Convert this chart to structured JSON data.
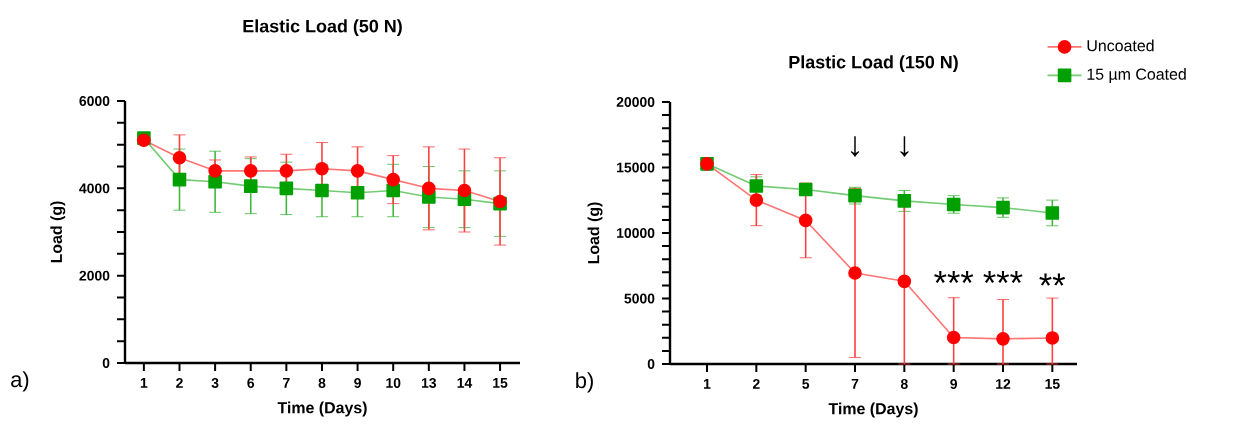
{
  "chart_data": [
    {
      "type": "line",
      "title": "Elastic Load (50 N)",
      "xlabel": "Time (Days)",
      "ylabel": "Load (g)",
      "categories": [
        "1",
        "2",
        "3",
        "6",
        "7",
        "8",
        "9",
        "10",
        "13",
        "14",
        "15"
      ],
      "ylim": [
        0,
        6000
      ],
      "yticks": [
        0,
        {
          "value": 500,
          "label": null
        },
        {
          "value": 1000,
          "label": null
        },
        {
          "value": 1500,
          "label": null
        },
        2000,
        {
          "value": 2500,
          "label": null
        },
        {
          "value": 3000,
          "label": null
        },
        {
          "value": 3500,
          "label": null
        },
        4000,
        {
          "value": 4500,
          "label": null
        },
        {
          "value": 5000,
          "label": null
        },
        {
          "value": 5500,
          "label": null
        },
        6000
      ],
      "series": [
        {
          "color": "#ff0000",
          "marker": "circle",
          "values": [
            5100,
            4700,
            4400,
            4400,
            4400,
            4450,
            4400,
            4200,
            4000,
            3950,
            3700
          ],
          "errors": [
            null,
            525,
            250,
            320,
            380,
            600,
            550,
            550,
            950,
            950,
            1000
          ]
        },
        {
          "color": "#00a000",
          "marker": "square",
          "values": [
            5150,
            4200,
            4150,
            4050,
            4000,
            3950,
            3900,
            3950,
            3800,
            3750,
            3650
          ],
          "errors": [
            null,
            700,
            700,
            630,
            600,
            600,
            550,
            600,
            700,
            650,
            750
          ]
        }
      ],
      "annotations": [
        "a)"
      ]
    },
    {
      "type": "line",
      "title": "Plastic Load (150 N)",
      "xlabel": "Time (Days)",
      "ylabel": "Load (g)",
      "categories": [
        "1",
        "2",
        "5",
        "7",
        "8",
        "9",
        "12",
        "15"
      ],
      "ylim": [
        0,
        20000
      ],
      "yticks": [
        0,
        {
          "value": 1000,
          "label": null
        },
        {
          "value": 2000,
          "label": null
        },
        {
          "value": 3000,
          "label": null
        },
        {
          "value": 4000,
          "label": null
        },
        5000,
        {
          "value": 6000,
          "label": null
        },
        {
          "value": 7000,
          "label": null
        },
        {
          "value": 8000,
          "label": null
        },
        {
          "value": 9000,
          "label": null
        },
        10000,
        {
          "value": 11000,
          "label": null
        },
        {
          "value": 12000,
          "label": null
        },
        {
          "value": 13000,
          "label": null
        },
        {
          "value": 14000,
          "label": null
        },
        15000,
        {
          "value": 16000,
          "label": null
        },
        {
          "value": 17000,
          "label": null
        },
        {
          "value": 18000,
          "label": null
        },
        {
          "value": 19000,
          "label": null
        },
        20000
      ],
      "legend": "top right",
      "series": [
        {
          "name": "Uncoated",
          "color": "#ff0000",
          "marker": "circle",
          "values": [
            15280,
            12510,
            10960,
            6950,
            6310,
            2020,
            1920,
            1990
          ],
          "errors": [
            null,
            1950,
            2850,
            6450,
            6310,
            [
              0,
              5060
            ],
            [
              0,
              4920
            ],
            [
              0,
              5030
            ]
          ]
        },
        {
          "name": "15 µm Coated",
          "color": "#00a000",
          "marker": "square",
          "values": [
            15280,
            13590,
            13320,
            12850,
            12450,
            12180,
            11940,
            11530
          ],
          "errors": [
            null,
            700,
            400,
            640,
            800,
            670,
            740,
            980
          ]
        }
      ],
      "annotations": [
        "b)",
        "↓",
        "↓",
        "***",
        "***",
        "**"
      ]
    }
  ]
}
